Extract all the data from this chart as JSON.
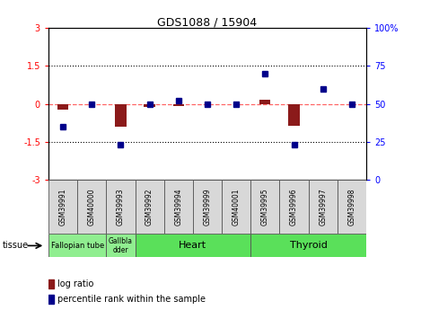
{
  "title": "GDS1088 / 15904",
  "samples": [
    "GSM39991",
    "GSM40000",
    "GSM39993",
    "GSM39992",
    "GSM39994",
    "GSM39999",
    "GSM40001",
    "GSM39995",
    "GSM39996",
    "GSM39997",
    "GSM39998"
  ],
  "log_ratio": [
    -0.22,
    0.0,
    -0.9,
    -0.12,
    -0.08,
    0.0,
    0.0,
    0.18,
    -0.85,
    0.0,
    0.0
  ],
  "percentile_rank": [
    35,
    50,
    23,
    50,
    52,
    50,
    50,
    70,
    23,
    60,
    50
  ],
  "tissue_groups": [
    {
      "label": "Fallopian tube",
      "start": 0,
      "end": 2,
      "color": "#90EE90",
      "fontsize": 6
    },
    {
      "label": "Gallbla\ndder",
      "start": 2,
      "end": 3,
      "color": "#90EE90",
      "fontsize": 5.5
    },
    {
      "label": "Heart",
      "start": 3,
      "end": 7,
      "color": "#5AE05A",
      "fontsize": 8
    },
    {
      "label": "Thyroid",
      "start": 7,
      "end": 11,
      "color": "#5AE05A",
      "fontsize": 8
    }
  ],
  "bar_color": "#8B1A1A",
  "dot_color": "#00008B",
  "hline_color": "#FF6666",
  "ylim_left": [
    -3,
    3
  ],
  "ylim_right": [
    0,
    100
  ],
  "yticks_left": [
    -3,
    -1.5,
    0,
    1.5,
    3
  ],
  "yticks_right": [
    0,
    25,
    50,
    75,
    100
  ],
  "dotted_lines": [
    -1.5,
    1.5
  ]
}
